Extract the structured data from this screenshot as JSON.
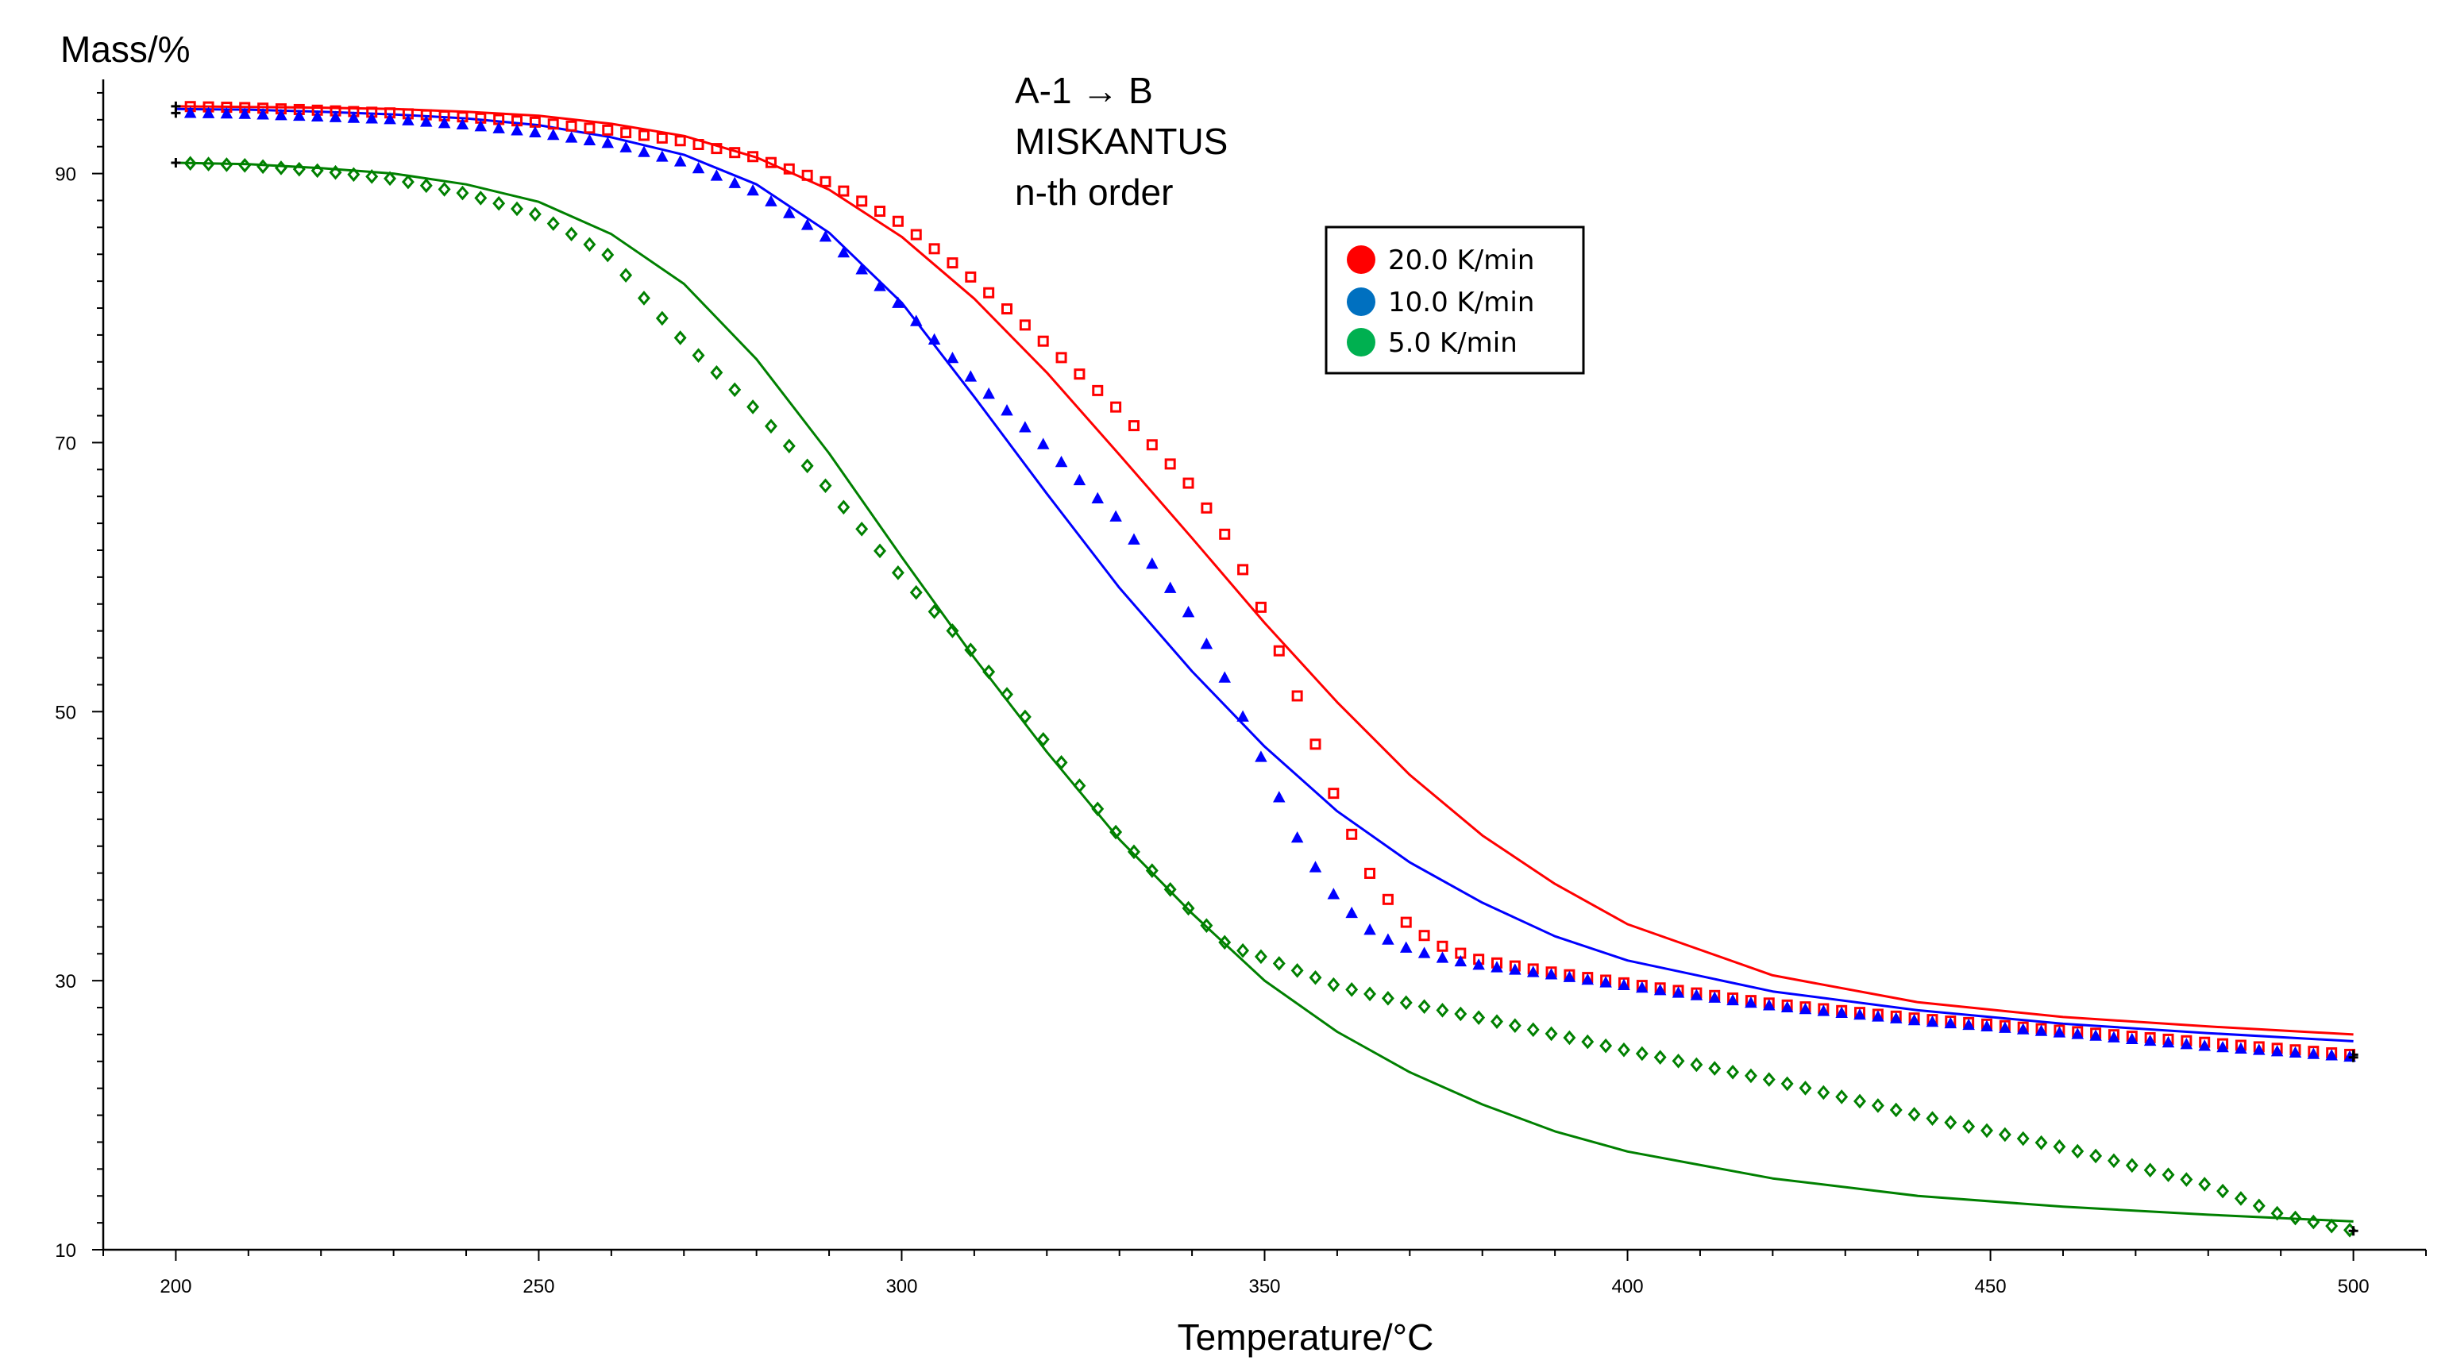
{
  "chart_data": {
    "type": "scatter",
    "title": "",
    "annotations": [
      "A-1 → B",
      "MISKANTUS",
      "n-th order"
    ],
    "xlabel": "Temperature/°C",
    "ylabel": "Mass/%",
    "xlim": [
      190,
      510
    ],
    "ylim": [
      10,
      97
    ],
    "x_ticks": [
      200,
      250,
      300,
      350,
      400,
      450,
      500
    ],
    "y_ticks": [
      10,
      30,
      50,
      70,
      90
    ],
    "legend_position": "top-center",
    "series": [
      {
        "name": "20.0 K/min",
        "color": "#ff0000",
        "measured_marker": "square",
        "measured": {
          "x": [
            200,
            210,
            220,
            230,
            240,
            250,
            260,
            270,
            280,
            290,
            300,
            310,
            320,
            330,
            340,
            345,
            350,
            355,
            360,
            365,
            370,
            375,
            380,
            390,
            400,
            420,
            440,
            460,
            480,
            500
          ],
          "y": [
            95,
            94.9,
            94.7,
            94.5,
            94.2,
            93.8,
            93.2,
            92.4,
            91.2,
            89.3,
            86.3,
            82.1,
            77.3,
            72.4,
            66.7,
            62.8,
            57.2,
            50.5,
            43.2,
            37.4,
            34.0,
            32.4,
            31.5,
            30.6,
            29.8,
            28.3,
            27.2,
            26.3,
            25.4,
            24.5
          ]
        },
        "fit": {
          "x": [
            200,
            210,
            220,
            230,
            240,
            250,
            260,
            270,
            280,
            290,
            300,
            310,
            320,
            330,
            340,
            350,
            360,
            370,
            380,
            390,
            400,
            420,
            440,
            460,
            480,
            500
          ],
          "y": [
            95,
            94.95,
            94.9,
            94.8,
            94.6,
            94.3,
            93.7,
            92.8,
            91.2,
            88.8,
            85.3,
            80.7,
            75.2,
            69.1,
            62.9,
            56.6,
            50.7,
            45.3,
            40.8,
            37.2,
            34.2,
            30.4,
            28.4,
            27.3,
            26.6,
            26.0
          ]
        }
      },
      {
        "name": "10.0 K/min",
        "color": "#0000ff",
        "measured_marker": "triangle",
        "measured": {
          "x": [
            200,
            210,
            220,
            230,
            240,
            250,
            260,
            270,
            280,
            290,
            300,
            310,
            320,
            330,
            340,
            345,
            350,
            355,
            360,
            365,
            370,
            375,
            380,
            390,
            400,
            420,
            440,
            460,
            480,
            500
          ],
          "y": [
            94.5,
            94.4,
            94.2,
            94.0,
            93.6,
            93.0,
            92.2,
            90.8,
            88.6,
            85.1,
            80.1,
            74.6,
            69.6,
            64.2,
            57.0,
            52.0,
            46.0,
            40.0,
            36.0,
            33.5,
            32.3,
            31.6,
            31.1,
            30.4,
            29.6,
            28.1,
            27.0,
            26.1,
            25.1,
            24.3
          ]
        },
        "fit": {
          "x": [
            200,
            210,
            220,
            230,
            240,
            250,
            260,
            270,
            280,
            290,
            300,
            310,
            320,
            330,
            340,
            350,
            360,
            370,
            380,
            390,
            400,
            420,
            440,
            460,
            480,
            500
          ],
          "y": [
            94.8,
            94.75,
            94.6,
            94.4,
            94.1,
            93.6,
            92.7,
            91.4,
            89.2,
            85.6,
            80.4,
            73.4,
            66.2,
            59.2,
            53.0,
            47.4,
            42.6,
            38.8,
            35.8,
            33.3,
            31.5,
            29.2,
            27.8,
            26.8,
            26.1,
            25.5
          ]
        }
      },
      {
        "name": "5.0 K/min",
        "color": "#008000",
        "measured_marker": "diamond",
        "measured": {
          "x": [
            200,
            210,
            220,
            230,
            240,
            250,
            260,
            265,
            270,
            280,
            290,
            300,
            310,
            320,
            330,
            340,
            345,
            350,
            360,
            370,
            380,
            390,
            400,
            420,
            440,
            460,
            480,
            490,
            500
          ],
          "y": [
            90.8,
            90.6,
            90.2,
            89.6,
            88.5,
            86.9,
            83.8,
            80.4,
            77.5,
            72.4,
            66.5,
            60.0,
            54.3,
            47.6,
            40.7,
            35.1,
            32.6,
            31.7,
            29.6,
            28.3,
            27.2,
            26.0,
            24.8,
            22.6,
            20.0,
            17.6,
            14.8,
            12.6,
            11.4
          ]
        },
        "fit": {
          "x": [
            200,
            210,
            220,
            230,
            240,
            250,
            260,
            270,
            280,
            290,
            300,
            310,
            320,
            330,
            340,
            350,
            360,
            370,
            380,
            390,
            400,
            420,
            440,
            460,
            480,
            500
          ],
          "y": [
            90.8,
            90.7,
            90.4,
            90.0,
            89.2,
            87.9,
            85.5,
            81.8,
            76.2,
            69.2,
            61.5,
            54.0,
            47.0,
            40.5,
            35.0,
            30.0,
            26.2,
            23.2,
            20.8,
            18.8,
            17.3,
            15.3,
            14.0,
            13.2,
            12.6,
            12.1
          ]
        }
      }
    ]
  }
}
